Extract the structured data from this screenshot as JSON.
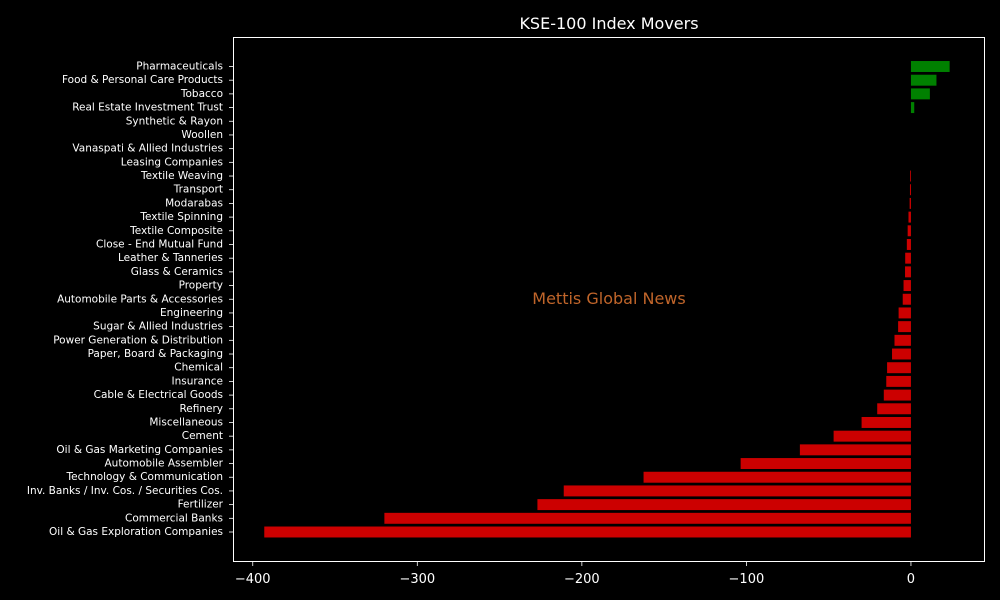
{
  "chart_data": {
    "type": "bar",
    "orientation": "horizontal",
    "title": "KSE-100 Index Movers",
    "watermark": "Mettis Global News",
    "xlabel": "",
    "ylabel": "",
    "xlim": [
      -412,
      45
    ],
    "xticks": [
      -400,
      -300,
      -200,
      -100,
      0
    ],
    "xtick_labels": [
      "−400",
      "−300",
      "−200",
      "−100",
      "0"
    ],
    "grid": false,
    "legend": "none",
    "colors": {
      "background": "#000000",
      "text": "#ffffff",
      "positive": "#008000",
      "negative": "#cc0000",
      "watermark": "#c0652a"
    },
    "categories": [
      "Pharmaceuticals",
      "Food & Personal Care Products",
      "Tobacco",
      "Real Estate Investment Trust",
      "Synthetic & Rayon",
      "Woollen",
      "Vanaspati & Allied Industries",
      "Leasing Companies",
      "Textile Weaving",
      "Transport",
      "Modarabas",
      "Textile Spinning",
      "Textile Composite",
      "Close - End Mutual Fund",
      "Leather & Tanneries",
      "Glass & Ceramics",
      "Property",
      "Automobile Parts & Accessories",
      "Engineering",
      "Sugar & Allied Industries",
      "Power Generation & Distribution",
      "Paper, Board & Packaging",
      "Chemical",
      "Insurance",
      "Cable & Electrical Goods",
      "Refinery",
      "Miscellaneous",
      "Cement",
      "Oil & Gas Marketing Companies",
      "Automobile Assembler",
      "Technology & Communication",
      "Inv. Banks / Inv. Cos. / Securities Cos.",
      "Fertilizer",
      "Commercial Banks",
      "Oil & Gas Exploration Companies"
    ],
    "values": [
      23.5,
      15.5,
      11.5,
      2.0,
      0,
      0,
      0,
      0,
      -0.5,
      -0.6,
      -0.8,
      -1.5,
      -2.0,
      -2.5,
      -3.5,
      -3.6,
      -4.5,
      -5.0,
      -7.5,
      -7.8,
      -10.0,
      -11.5,
      -14.5,
      -15.0,
      -16.5,
      -20.5,
      -30.0,
      -47.0,
      -67.5,
      -103.5,
      -162.5,
      -211.0,
      -227.0,
      -320.0,
      -393.0
    ]
  }
}
